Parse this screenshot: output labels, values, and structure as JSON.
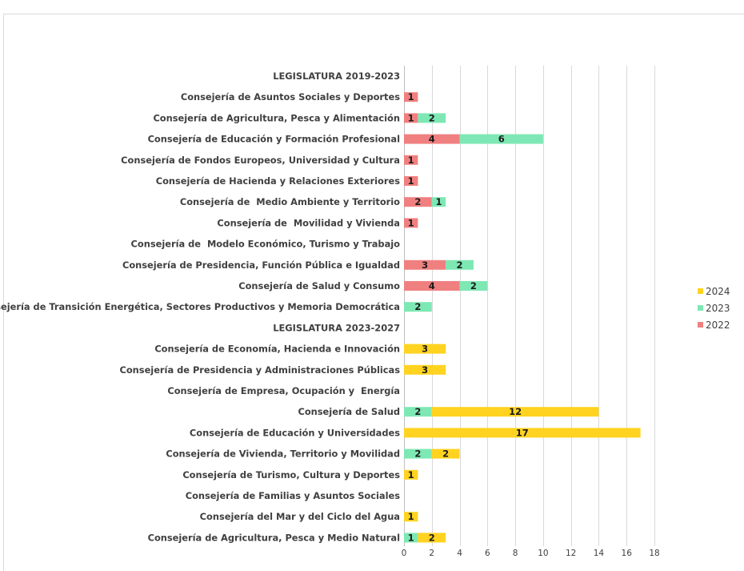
{
  "chart_data": {
    "type": "bar",
    "orientation": "horizontal",
    "stacked": true,
    "title": "",
    "xlabel": "",
    "ylabel": "",
    "xlim": [
      0,
      18
    ],
    "xticks": [
      0,
      2,
      4,
      6,
      8,
      10,
      12,
      14,
      16,
      18
    ],
    "grid": true,
    "legend_position": "right",
    "categories": [
      "LEGISLATURA 2019-2023",
      "Consejería de Asuntos Sociales y Deportes",
      "Consejería de Agricultura, Pesca y Alimentación",
      "Consejería de Educación y Formación Profesional",
      "Consejería de Fondos Europeos, Universidad y Cultura",
      "Consejería de Hacienda y Relaciones Exteriores",
      "Consejería de  Medio Ambiente y Territorio",
      "Consejería de  Movilidad y Vivienda",
      "Consejería de  Modelo Económico, Turismo y Trabajo",
      "Consejería de Presidencia, Función Pública e Igualdad",
      "Consejería de Salud y Consumo",
      "Consejería de Transición Energética, Sectores Productivos y Memoria Democrática",
      "LEGISLATURA 2023-2027",
      "Consejería de Economía, Hacienda e Innovación",
      "Consejería de Presidencia y Administraciones Públicas",
      "Consejería de Empresa, Ocupación y  Energía",
      "Consejería de Salud",
      "Consejería de Educación y Universidades",
      "Consejería de Vivienda, Territorio y Movilidad",
      "Consejería de Turismo, Cultura y Deportes",
      "Consejería de Familias y Asuntos Sociales",
      "Consejería del Mar y del Ciclo del Agua",
      "Consejería de Agricultura, Pesca y Medio Natural"
    ],
    "series": [
      {
        "name": "2022",
        "color": "#f08080",
        "values": [
          null,
          1,
          1,
          4,
          1,
          1,
          2,
          1,
          null,
          3,
          4,
          null,
          null,
          null,
          null,
          null,
          null,
          null,
          null,
          null,
          null,
          null,
          null
        ]
      },
      {
        "name": "2023",
        "color": "#7ee8b4",
        "values": [
          null,
          null,
          2,
          6,
          null,
          null,
          1,
          null,
          null,
          2,
          2,
          2,
          null,
          null,
          null,
          null,
          2,
          null,
          2,
          null,
          null,
          null,
          1
        ]
      },
      {
        "name": "2024",
        "color": "#ffd320",
        "values": [
          null,
          null,
          null,
          null,
          null,
          null,
          null,
          null,
          null,
          null,
          null,
          null,
          null,
          3,
          3,
          null,
          12,
          17,
          2,
          1,
          null,
          1,
          2
        ]
      }
    ],
    "legend_order": [
      "2024",
      "2023",
      "2022"
    ]
  }
}
